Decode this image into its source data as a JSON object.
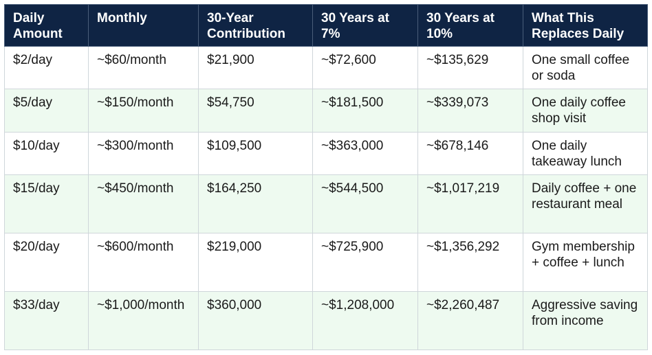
{
  "table": {
    "headers": [
      "Daily Amount",
      "Monthly",
      "30-Year Contribution",
      "30 Years at 7%",
      "30 Years at 10%",
      "What This Replaces Daily"
    ],
    "rows": [
      [
        "$2/day",
        "~$60/month",
        "$21,900",
        "~$72,600",
        "~$135,629",
        "One small coffee or soda"
      ],
      [
        "$5/day",
        "~$150/month",
        "$54,750",
        "~$181,500",
        "~$339,073",
        "One daily coffee shop visit"
      ],
      [
        "$10/day",
        "~$300/month",
        "$109,500",
        "~$363,000",
        "~$678,146",
        "One daily takeaway lunch"
      ],
      [
        "$15/day",
        "~$450/month",
        "$164,250",
        "~$544,500",
        "~$1,017,219",
        "Daily coffee + one restaurant meal"
      ],
      [
        "$20/day",
        "~$600/month",
        "$219,000",
        "~$725,900",
        "~$1,356,292",
        "Gym membership + coffee + lunch"
      ],
      [
        "$33/day",
        "~$1,000/month",
        "$360,000",
        "~$1,208,000",
        "~$2,260,487",
        "Aggressive saving from income"
      ]
    ]
  },
  "colors": {
    "header_bg": "#0f2444",
    "header_text": "#ffffff",
    "row_alt_bg": "#eefaf0",
    "row_bg": "#ffffff",
    "border": "#cfd6da"
  }
}
